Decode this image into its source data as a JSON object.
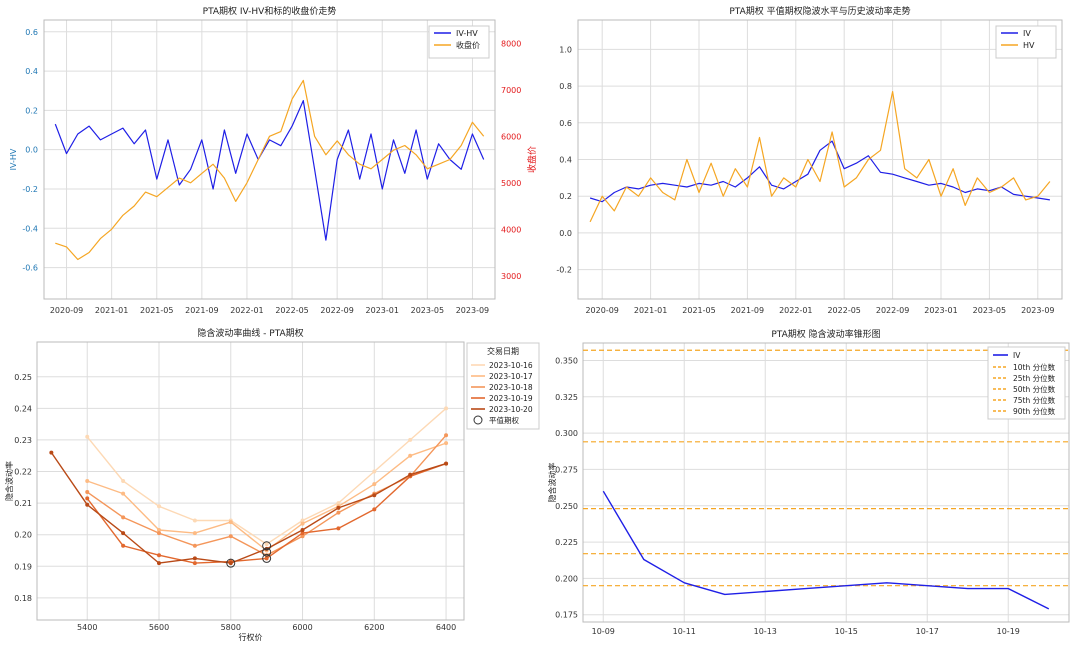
{
  "colors": {
    "iv_blue": "#1f1fe6",
    "hv_orange": "#f5a623",
    "price_orange": "#f5a623",
    "red_axis": "#e31a1c",
    "blue_axis": "#1f77b4",
    "grid": "#dddddd",
    "date_colors": [
      "#fdd9b5",
      "#fdbb84",
      "#f4965a",
      "#e2682e",
      "#b94a17"
    ]
  },
  "chart_data": [
    {
      "type": "line",
      "title": "PTA期权 IV-HV和标的收盘价走势",
      "ylabel": "IV-HV",
      "y2label": "收盘价",
      "ylim": [
        -0.76,
        0.66
      ],
      "y2lim": [
        2500,
        8500
      ],
      "yticks": [
        "-0.6",
        "-0.4",
        "-0.2",
        "0.0",
        "0.2",
        "0.4",
        "0.6"
      ],
      "y2ticks": [
        "3000",
        "4000",
        "5000",
        "6000",
        "7000",
        "8000"
      ],
      "xticks": [
        "2020-09",
        "2021-01",
        "2021-05",
        "2021-09",
        "2022-01",
        "2022-05",
        "2022-09",
        "2023-01",
        "2023-05",
        "2023-09"
      ],
      "xlim": [
        "2020-07",
        "2023-11"
      ],
      "grid": true,
      "legend_position": "top-right",
      "series": [
        {
          "name": "IV-HV",
          "axis": "left",
          "color": "iv_blue",
          "x": [
            "2020-08",
            "2020-09",
            "2020-10",
            "2020-11",
            "2020-12",
            "2021-01",
            "2021-02",
            "2021-03",
            "2021-04",
            "2021-05",
            "2021-06",
            "2021-07",
            "2021-08",
            "2021-09",
            "2021-10",
            "2021-11",
            "2021-12",
            "2022-01",
            "2022-02",
            "2022-03",
            "2022-04",
            "2022-05",
            "2022-06",
            "2022-07",
            "2022-08",
            "2022-09",
            "2022-10",
            "2022-11",
            "2022-12",
            "2023-01",
            "2023-02",
            "2023-03",
            "2023-04",
            "2023-05",
            "2023-06",
            "2023-07",
            "2023-08",
            "2023-09",
            "2023-10"
          ],
          "values": [
            0.13,
            -0.02,
            0.08,
            0.12,
            0.05,
            0.08,
            0.11,
            0.03,
            0.1,
            -0.15,
            0.05,
            -0.18,
            -0.1,
            0.05,
            -0.2,
            0.1,
            -0.12,
            0.08,
            -0.05,
            0.05,
            0.02,
            0.12,
            0.25,
            -0.1,
            -0.46,
            -0.05,
            0.1,
            -0.15,
            0.08,
            -0.2,
            0.05,
            -0.12,
            0.1,
            -0.15,
            0.03,
            -0.05,
            -0.1,
            0.08,
            -0.05
          ]
        },
        {
          "name": "收盘价",
          "axis": "right",
          "color": "price_orange",
          "x": [
            "2020-08",
            "2020-09",
            "2020-10",
            "2020-11",
            "2020-12",
            "2021-01",
            "2021-02",
            "2021-03",
            "2021-04",
            "2021-05",
            "2021-06",
            "2021-07",
            "2021-08",
            "2021-09",
            "2021-10",
            "2021-11",
            "2021-12",
            "2022-01",
            "2022-02",
            "2022-03",
            "2022-04",
            "2022-05",
            "2022-06",
            "2022-07",
            "2022-08",
            "2022-09",
            "2022-10",
            "2022-11",
            "2022-12",
            "2023-01",
            "2023-02",
            "2023-03",
            "2023-04",
            "2023-05",
            "2023-06",
            "2023-07",
            "2023-08",
            "2023-09",
            "2023-10"
          ],
          "values": [
            3700,
            3620,
            3350,
            3500,
            3800,
            4000,
            4300,
            4500,
            4800,
            4700,
            4900,
            5100,
            5000,
            5200,
            5400,
            5100,
            4600,
            5000,
            5500,
            6000,
            6100,
            6800,
            7200,
            6000,
            5600,
            5900,
            5600,
            5400,
            5300,
            5500,
            5700,
            5800,
            5600,
            5300,
            5400,
            5500,
            5800,
            6300,
            6000
          ]
        }
      ]
    },
    {
      "type": "line",
      "title": "PTA期权 平值期权隐波水平与历史波动率走势",
      "ylim": [
        -0.36,
        1.16
      ],
      "yticks": [
        "-0.2",
        "0.0",
        "0.2",
        "0.4",
        "0.6",
        "0.8",
        "1.0"
      ],
      "xticks": [
        "2020-09",
        "2021-01",
        "2021-05",
        "2021-09",
        "2022-01",
        "2022-05",
        "2022-09",
        "2023-01",
        "2023-05",
        "2023-09"
      ],
      "xlim": [
        "2020-07",
        "2023-11"
      ],
      "grid": true,
      "legend_position": "top-right",
      "series": [
        {
          "name": "IV",
          "color": "iv_blue",
          "x": [
            "2020-08",
            "2020-09",
            "2020-10",
            "2020-11",
            "2020-12",
            "2021-01",
            "2021-02",
            "2021-03",
            "2021-04",
            "2021-05",
            "2021-06",
            "2021-07",
            "2021-08",
            "2021-09",
            "2021-10",
            "2021-11",
            "2021-12",
            "2022-01",
            "2022-02",
            "2022-03",
            "2022-04",
            "2022-05",
            "2022-06",
            "2022-07",
            "2022-08",
            "2022-09",
            "2022-10",
            "2022-11",
            "2022-12",
            "2023-01",
            "2023-02",
            "2023-03",
            "2023-04",
            "2023-05",
            "2023-06",
            "2023-07",
            "2023-08",
            "2023-09",
            "2023-10"
          ],
          "values": [
            0.19,
            0.17,
            0.22,
            0.25,
            0.24,
            0.26,
            0.27,
            0.26,
            0.25,
            0.27,
            0.26,
            0.28,
            0.25,
            0.3,
            0.36,
            0.26,
            0.24,
            0.28,
            0.32,
            0.45,
            0.5,
            0.35,
            0.38,
            0.42,
            0.33,
            0.32,
            0.3,
            0.28,
            0.26,
            0.27,
            0.25,
            0.22,
            0.24,
            0.23,
            0.25,
            0.21,
            0.2,
            0.19,
            0.18
          ]
        },
        {
          "name": "HV",
          "color": "hv_orange",
          "x": [
            "2020-08",
            "2020-09",
            "2020-10",
            "2020-11",
            "2020-12",
            "2021-01",
            "2021-02",
            "2021-03",
            "2021-04",
            "2021-05",
            "2021-06",
            "2021-07",
            "2021-08",
            "2021-09",
            "2021-10",
            "2021-11",
            "2021-12",
            "2022-01",
            "2022-02",
            "2022-03",
            "2022-04",
            "2022-05",
            "2022-06",
            "2022-07",
            "2022-08",
            "2022-09",
            "2022-10",
            "2022-11",
            "2022-12",
            "2023-01",
            "2023-02",
            "2023-03",
            "2023-04",
            "2023-05",
            "2023-06",
            "2023-07",
            "2023-08",
            "2023-09",
            "2023-10"
          ],
          "values": [
            0.06,
            0.2,
            0.12,
            0.25,
            0.2,
            0.3,
            0.22,
            0.18,
            0.4,
            0.22,
            0.38,
            0.2,
            0.35,
            0.25,
            0.52,
            0.2,
            0.3,
            0.25,
            0.4,
            0.28,
            0.55,
            0.25,
            0.3,
            0.4,
            0.45,
            0.77,
            0.35,
            0.3,
            0.4,
            0.2,
            0.35,
            0.15,
            0.3,
            0.22,
            0.25,
            0.3,
            0.18,
            0.2,
            0.28
          ]
        }
      ]
    },
    {
      "type": "line",
      "title": "隐含波动率曲线 - PTA期权",
      "xlabel": "行权价",
      "ylabel": "隐含波动率",
      "xlim": [
        5260,
        6450
      ],
      "ylim": [
        0.173,
        0.261
      ],
      "xticks": [
        "5400",
        "5600",
        "5800",
        "6000",
        "6200",
        "6400"
      ],
      "yticks": [
        "0.18",
        "0.19",
        "0.20",
        "0.21",
        "0.22",
        "0.23",
        "0.24",
        "0.25"
      ],
      "grid": true,
      "legend_title": "交易日期",
      "legend_position": "top-right",
      "atm_label": "平值期权",
      "series": [
        {
          "name": "2023-10-16",
          "color_index": 0,
          "x": [
            5400,
            5500,
            5600,
            5700,
            5800,
            5900,
            6000,
            6100,
            6200,
            6300,
            6400
          ],
          "values": [
            0.231,
            0.217,
            0.209,
            0.2045,
            0.2045,
            0.197,
            0.2045,
            0.21,
            0.22,
            0.23,
            0.24
          ]
        },
        {
          "name": "2023-10-17",
          "color_index": 1,
          "x": [
            5400,
            5500,
            5600,
            5700,
            5800,
            5900,
            6000,
            6100,
            6200,
            6300,
            6400
          ],
          "values": [
            0.217,
            0.213,
            0.2015,
            0.2005,
            0.204,
            0.195,
            0.2035,
            0.209,
            0.216,
            0.225,
            0.229
          ]
        },
        {
          "name": "2023-10-18",
          "color_index": 2,
          "x": [
            5400,
            5500,
            5600,
            5700,
            5800,
            5900,
            6000,
            6100,
            6200,
            6300,
            6400
          ],
          "values": [
            0.2135,
            0.2055,
            0.2005,
            0.1965,
            0.1995,
            0.1935,
            0.1995,
            0.207,
            0.213,
            0.2185,
            0.2315
          ]
        },
        {
          "name": "2023-10-19",
          "color_index": 3,
          "x": [
            5400,
            5500,
            5600,
            5700,
            5800,
            5900,
            6000,
            6100,
            6200,
            6300,
            6400
          ],
          "values": [
            0.2115,
            0.1965,
            0.1935,
            0.191,
            0.1915,
            0.1925,
            0.2005,
            0.202,
            0.208,
            0.2185,
            0.2225
          ]
        },
        {
          "name": "2023-10-20",
          "color_index": 4,
          "x": [
            5300,
            5400,
            5500,
            5600,
            5700,
            5800,
            5900,
            6000,
            6100,
            6200,
            6300,
            6400
          ],
          "values": [
            0.226,
            0.2095,
            0.2005,
            0.191,
            0.1925,
            0.191,
            0.1955,
            0.2015,
            0.2085,
            0.2125,
            0.219,
            0.2225
          ]
        }
      ],
      "atm_points": [
        {
          "x": 5800,
          "y": 0.191
        },
        {
          "x": 5900,
          "y": 0.1965
        },
        {
          "x": 5900,
          "y": 0.1945
        },
        {
          "x": 5900,
          "y": 0.1925
        }
      ]
    },
    {
      "type": "line",
      "title": "PTA期权 隐含波动率锥形图",
      "ylabel": "隐含波动率",
      "xlim": [
        -0.5,
        11.5
      ],
      "ylim": [
        0.17,
        0.362
      ],
      "yticks": [
        "0.175",
        "0.200",
        "0.225",
        "0.250",
        "0.275",
        "0.300",
        "0.325",
        "0.350"
      ],
      "xticks": [
        "10-09",
        "10-11",
        "10-13",
        "10-15",
        "10-17",
        "10-19"
      ],
      "grid": true,
      "legend_position": "top-right",
      "series": [
        {
          "name": "IV",
          "color": "iv_blue",
          "x": [
            "10-09",
            "10-10",
            "10-11",
            "10-12",
            "10-13",
            "10-14",
            "10-15",
            "10-16",
            "10-17",
            "10-18",
            "10-19",
            "10-20"
          ],
          "values": [
            0.26,
            0.213,
            0.197,
            0.189,
            0.191,
            0.193,
            0.195,
            0.197,
            0.195,
            0.193,
            0.193,
            0.179
          ]
        }
      ],
      "percentiles": [
        {
          "name": "10th 分位数",
          "value": 0.195
        },
        {
          "name": "25th 分位数",
          "value": 0.217
        },
        {
          "name": "50th 分位数",
          "value": 0.248
        },
        {
          "name": "75th 分位数",
          "value": 0.294
        },
        {
          "name": "90th 分位数",
          "value": 0.357
        }
      ]
    }
  ]
}
